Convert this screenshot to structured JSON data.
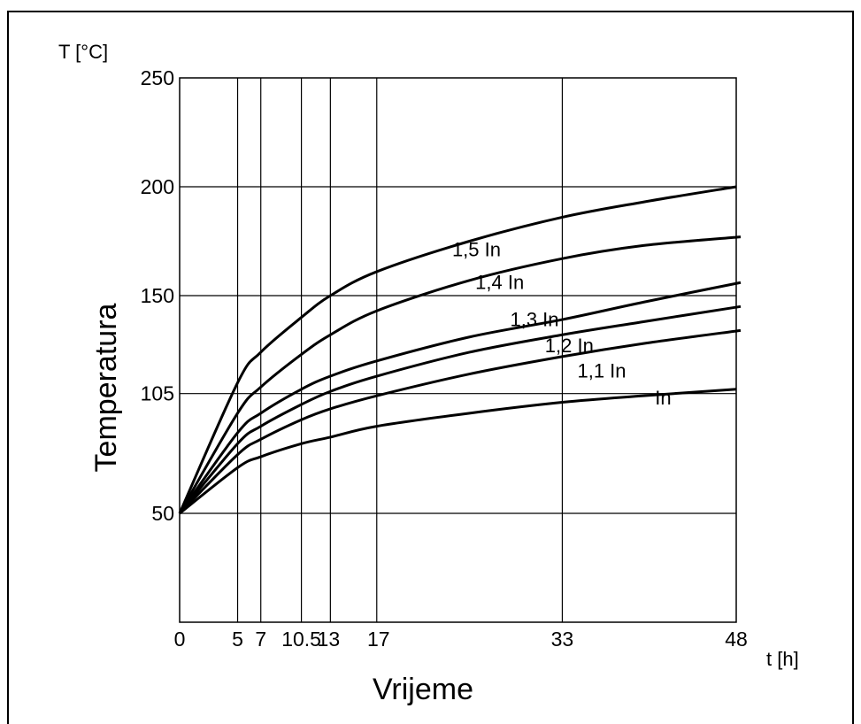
{
  "chart_data": {
    "type": "line",
    "title": "",
    "ylabel": "Temperatura",
    "ylabel_unit": "T [°C]",
    "xlabel": "Vrijeme",
    "xlabel_unit": "t [h]",
    "xlim": [
      0,
      48
    ],
    "ylim": [
      0,
      250
    ],
    "grid": true,
    "x_ticks": [
      "0",
      "5",
      "7",
      "10.5",
      "13",
      "17",
      "33",
      "48"
    ],
    "y_ticks": [
      "50",
      "105",
      "150",
      "200",
      "250"
    ],
    "x_tick_values": [
      0,
      5,
      7,
      10.5,
      13,
      17,
      33,
      48
    ],
    "y_tick_values": [
      50,
      105,
      150,
      200,
      250
    ],
    "legend": "inline",
    "series": [
      {
        "name": "1,5 In",
        "x": [
          0,
          5,
          7,
          10.5,
          13,
          17,
          25,
          33,
          40,
          48
        ],
        "y": [
          50,
          110,
          124,
          140,
          150,
          161,
          175,
          186,
          193,
          200
        ]
      },
      {
        "name": "1,4 In",
        "x": [
          0,
          5,
          7,
          10.5,
          13,
          17,
          25,
          33,
          40,
          48
        ],
        "y": [
          50,
          96,
          108,
          123,
          132,
          143,
          157,
          167,
          173,
          177
        ]
      },
      {
        "name": "1,3 In",
        "x": [
          0,
          5,
          7,
          10.5,
          13,
          17,
          25,
          33,
          40,
          48
        ],
        "y": [
          50,
          87,
          96,
          107,
          113,
          120,
          131,
          139,
          147,
          156
        ]
      },
      {
        "name": "1,2 In",
        "x": [
          0,
          5,
          7,
          10.5,
          13,
          17,
          25,
          33,
          40,
          48
        ],
        "y": [
          50,
          82,
          90,
          100,
          106,
          113,
          124,
          132,
          138,
          145
        ]
      },
      {
        "name": "1,1 In",
        "x": [
          0,
          5,
          7,
          10.5,
          13,
          17,
          25,
          33,
          40,
          48
        ],
        "y": [
          50,
          77,
          84,
          93,
          98,
          104,
          114,
          122,
          128,
          134
        ]
      },
      {
        "name": "In",
        "x": [
          0,
          5,
          7,
          10.5,
          13,
          17,
          25,
          33,
          40,
          48
        ],
        "y": [
          50,
          71,
          76,
          82,
          85,
          90,
          96,
          101,
          104,
          107
        ]
      }
    ]
  }
}
